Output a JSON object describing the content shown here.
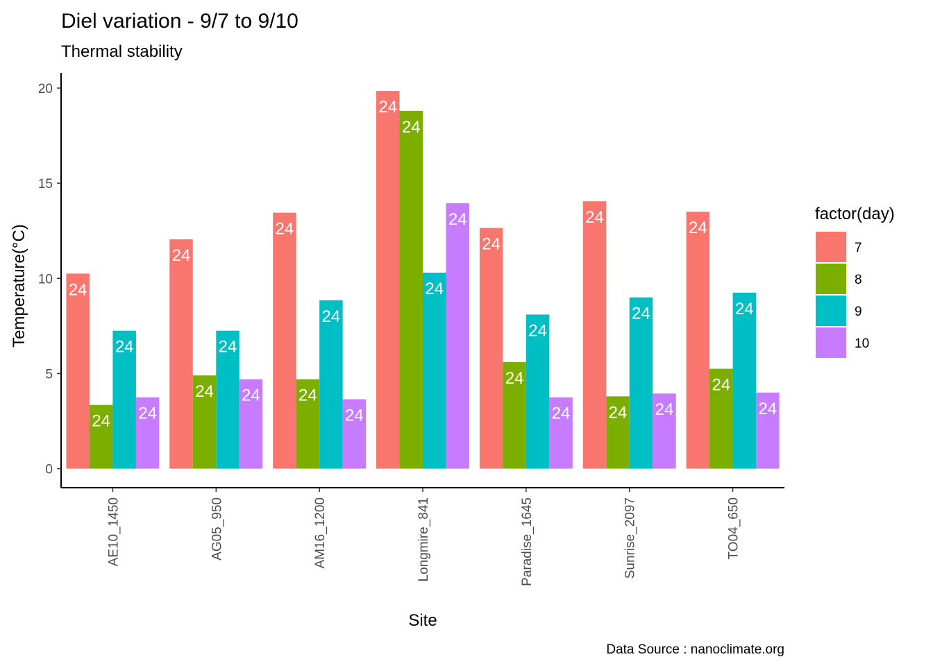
{
  "chart_data": {
    "type": "bar",
    "title": "Diel variation - 9/7 to 9/10",
    "subtitle": "Thermal stability",
    "xlabel": "Site",
    "ylabel": "Temperature(°C)",
    "caption": "Data Source : nanoclimate.org",
    "ylim": [
      -1,
      20.8
    ],
    "yticks": [
      0,
      5,
      10,
      15,
      20
    ],
    "grid": false,
    "legend": {
      "title": "factor(day)",
      "position": "right"
    },
    "categories": [
      "AE10_1450",
      "AG05_950",
      "AM16_1200",
      "Longmire_841",
      "Paradise_1645",
      "Sunrise_2097",
      "TO04_650"
    ],
    "series": [
      {
        "name": "7",
        "color": "#F8766D",
        "values": [
          10.25,
          12.05,
          13.45,
          19.85,
          12.65,
          14.05,
          13.5
        ],
        "labels": [
          "24",
          "24",
          "24",
          "24",
          "24",
          "24",
          "24"
        ]
      },
      {
        "name": "8",
        "color": "#7CAE00",
        "values": [
          3.35,
          4.9,
          4.7,
          18.8,
          5.6,
          3.8,
          5.25
        ],
        "labels": [
          "24",
          "24",
          "24",
          "24",
          "24",
          "24",
          "24"
        ]
      },
      {
        "name": "9",
        "color": "#00BFC4",
        "values": [
          7.25,
          7.25,
          8.85,
          10.3,
          8.1,
          9.0,
          9.25
        ],
        "labels": [
          "24",
          "24",
          "24",
          "24",
          "24",
          "24",
          "24"
        ]
      },
      {
        "name": "10",
        "color": "#C77CFF",
        "values": [
          3.75,
          4.7,
          3.65,
          13.95,
          3.75,
          3.95,
          4.0
        ],
        "labels": [
          "24",
          "24",
          "24",
          "24",
          "24",
          "24",
          "24"
        ]
      }
    ]
  }
}
